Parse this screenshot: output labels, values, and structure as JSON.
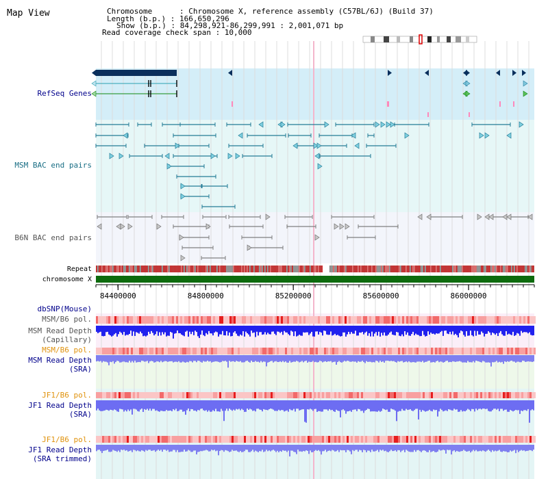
{
  "panel_title": "Map View",
  "header": {
    "chromosome_line": "Chromosome      : Chromosome X, reference assembly (C57BL/6J) (Build 37)",
    "length_line": "Length (b.p.) : 166,650,296",
    "show_line": "Show (b.p.) : 84,298,921-86,299,991 : 2,001,071 bp",
    "coverage_line": "Read coverage check span : 10,000"
  },
  "tracks": {
    "refseq": "RefSeq Genes",
    "msm_bac": "MSM BAC end pairs",
    "b6n_bac": "B6N BAC end pairs",
    "repeat": "Repeat",
    "chromosome": "chromosome X",
    "dbsnp": "dbSNP(Mouse)",
    "msm_pol_1": "MSM/B6 pol.",
    "msm_depth_cap_1": "MSM Read Depth",
    "msm_depth_cap_2": "(Capillary)",
    "msm_pol_2": "MSM/B6 pol.",
    "msm_depth_sra_1": "MSM Read Depth",
    "msm_depth_sra_2": "(SRA)",
    "jf1_pol_1": "JF1/B6 pol.",
    "jf1_depth_sra_1": "JF1 Read Depth",
    "jf1_depth_sra_2": "(SRA)",
    "jf1_pol_2": "JF1/B6 pol.",
    "jf1_depth_trim_1": "JF1 Read Depth",
    "jf1_depth_trim_2": "(SRA trimmed)"
  },
  "axis": {
    "ticks": [
      "84400000",
      "84800000",
      "85200000",
      "85600000",
      "86000000"
    ],
    "tick_values": [
      84400000,
      84800000,
      85200000,
      85600000,
      86000000
    ],
    "range": [
      84298921,
      86299991
    ]
  },
  "colors": {
    "refseq_bg": "#d4eef8",
    "track_bg": "#e6f7f7",
    "b6n_bg": "#f3f5fb",
    "gene_dark": "#0a2f5c",
    "msm_pair": "#237b96",
    "b6n_pair": "#7f7f7f",
    "chromosome": "#0d6b0d",
    "depth_blue": "#2121ee",
    "depth_light": "#7f7ff0",
    "label_blue": "#00008b",
    "label_orange": "#e0920c",
    "label_teal": "#186d84"
  }
}
